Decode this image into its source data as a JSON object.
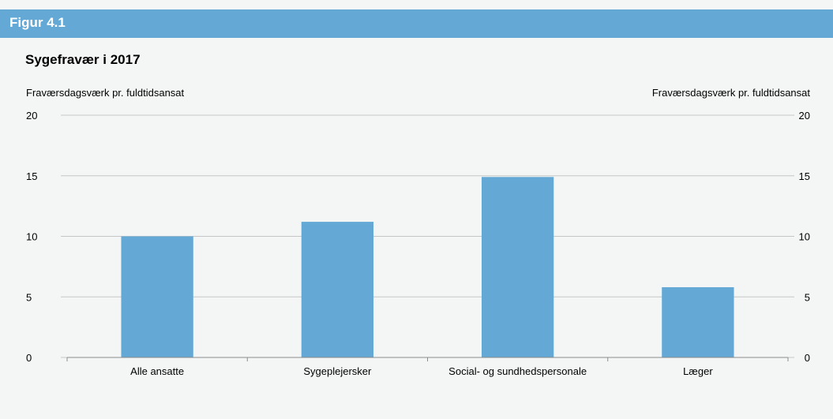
{
  "header": {
    "label": "Figur 4.1",
    "bar_color": "#64a9d6"
  },
  "chart_data": {
    "type": "bar",
    "title": "Sygefravær i 2017",
    "ylabel_left": "Fraværsdagsværk pr. fuldtidsansat",
    "ylabel_right": "Fraværsdagsværk pr. fuldtidsansat",
    "xlabel": "",
    "categories": [
      "Alle ansatte",
      "Sygeplejersker",
      "Social- og sundhedspersonale",
      "Læger"
    ],
    "values": [
      10.0,
      11.2,
      14.9,
      5.8
    ],
    "ylim": [
      0,
      20
    ],
    "yticks": [
      0,
      5,
      10,
      15,
      20
    ],
    "grid": true,
    "legend": "none",
    "bar_color": "#64a9d6"
  }
}
